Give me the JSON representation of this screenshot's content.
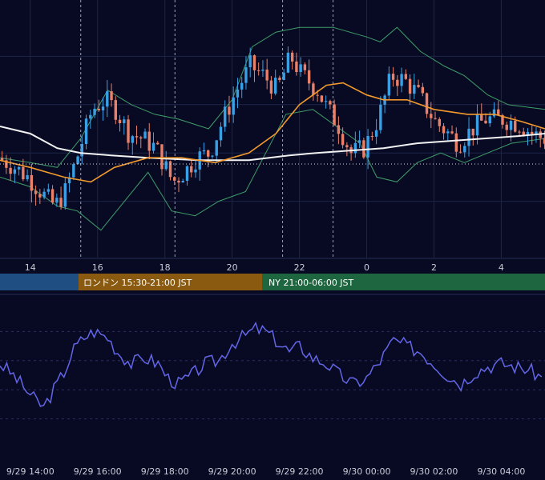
{
  "colors": {
    "background": "#070a22",
    "grid": "#1f2448",
    "bull": "#3aa0e6",
    "bear": "#e8806a",
    "bollinger": "#3f9e6a",
    "ma_short": "#f29a2e",
    "ma_long": "#f2f2f2",
    "rsi": "#6466e8",
    "session_tokyo": "#1f4e82",
    "session_london": "#8a5a10",
    "session_ny": "#1e6640"
  },
  "sessions": [
    {
      "label": "",
      "color": "#1f4e82"
    },
    {
      "label": "ロンドン 15:30-21:00 JST",
      "color": "#8a5a10"
    },
    {
      "label": "NY 21:00-06:00 JST",
      "color": "#1e6640"
    }
  ],
  "chart_data": [
    {
      "type": "candlestick",
      "title": "",
      "x_tick_labels": [
        "14",
        "16",
        "18",
        "20",
        "22",
        "0",
        "2",
        "4"
      ],
      "x_hours": [
        14,
        16,
        18,
        20,
        22,
        24,
        26,
        28
      ],
      "x_range": [
        13.1,
        29.3
      ],
      "y_range": [
        0,
        100
      ],
      "grid": true,
      "session_dividers_hours": [
        15.5,
        18.3,
        21.5,
        23.0
      ],
      "price_path": [
        [
          13.1,
          38
        ],
        [
          13.5,
          35
        ],
        [
          14.0,
          30
        ],
        [
          14.5,
          22
        ],
        [
          14.8,
          18
        ],
        [
          15.1,
          24
        ],
        [
          15.5,
          40
        ],
        [
          15.9,
          58
        ],
        [
          16.3,
          62
        ],
        [
          16.6,
          58
        ],
        [
          17.0,
          48
        ],
        [
          17.4,
          46
        ],
        [
          17.8,
          42
        ],
        [
          18.3,
          28
        ],
        [
          18.7,
          33
        ],
        [
          19.0,
          38
        ],
        [
          19.4,
          40
        ],
        [
          19.8,
          54
        ],
        [
          20.2,
          66
        ],
        [
          20.6,
          76
        ],
        [
          21.0,
          72
        ],
        [
          21.4,
          66
        ],
        [
          21.8,
          80
        ],
        [
          22.1,
          73
        ],
        [
          22.6,
          66
        ],
        [
          22.9,
          58
        ],
        [
          23.2,
          52
        ],
        [
          23.6,
          40
        ],
        [
          24.0,
          42
        ],
        [
          24.4,
          54
        ],
        [
          24.8,
          72
        ],
        [
          25.2,
          70
        ],
        [
          25.6,
          64
        ],
        [
          26.1,
          53
        ],
        [
          26.5,
          48
        ],
        [
          26.8,
          44
        ],
        [
          27.2,
          50
        ],
        [
          27.6,
          54
        ],
        [
          28.1,
          54
        ],
        [
          28.6,
          52
        ],
        [
          29.0,
          48
        ],
        [
          29.3,
          46
        ]
      ],
      "ma_short_path": [
        [
          13.1,
          37
        ],
        [
          14.0,
          34
        ],
        [
          15.0,
          30
        ],
        [
          15.8,
          28
        ],
        [
          16.5,
          34
        ],
        [
          17.5,
          38
        ],
        [
          18.5,
          38
        ],
        [
          19.5,
          36
        ],
        [
          20.5,
          40
        ],
        [
          21.3,
          48
        ],
        [
          22.0,
          60
        ],
        [
          22.8,
          68
        ],
        [
          23.3,
          69
        ],
        [
          24.0,
          64
        ],
        [
          24.5,
          62
        ],
        [
          25.2,
          62
        ],
        [
          26.0,
          58
        ],
        [
          27.0,
          56
        ],
        [
          27.8,
          56
        ],
        [
          28.6,
          53
        ],
        [
          29.3,
          50
        ]
      ],
      "ma_long_path": [
        [
          13.1,
          51
        ],
        [
          14.0,
          48
        ],
        [
          14.8,
          42
        ],
        [
          15.5,
          40
        ],
        [
          16.4,
          39
        ],
        [
          17.5,
          38
        ],
        [
          19.0,
          37
        ],
        [
          20.5,
          37
        ],
        [
          21.7,
          39
        ],
        [
          22.5,
          40
        ],
        [
          23.5,
          41
        ],
        [
          24.5,
          42
        ],
        [
          25.5,
          44
        ],
        [
          26.5,
          45
        ],
        [
          27.5,
          46
        ],
        [
          28.5,
          47
        ],
        [
          29.3,
          48
        ]
      ],
      "bollinger_upper_path": [
        [
          13.1,
          38
        ],
        [
          14.0,
          36
        ],
        [
          14.8,
          34
        ],
        [
          15.5,
          46
        ],
        [
          16.3,
          66
        ],
        [
          17.0,
          60
        ],
        [
          17.7,
          56
        ],
        [
          18.4,
          54
        ],
        [
          19.3,
          50
        ],
        [
          20.0,
          62
        ],
        [
          20.6,
          84
        ],
        [
          21.3,
          90
        ],
        [
          22.0,
          92
        ],
        [
          23.0,
          92
        ],
        [
          23.5,
          90
        ],
        [
          24.0,
          88
        ],
        [
          24.4,
          86
        ],
        [
          24.9,
          92
        ],
        [
          25.6,
          82
        ],
        [
          26.3,
          76
        ],
        [
          26.9,
          72
        ],
        [
          27.6,
          64
        ],
        [
          28.2,
          60
        ],
        [
          29.3,
          58
        ]
      ],
      "bollinger_lower_path": [
        [
          13.1,
          30
        ],
        [
          14.0,
          26
        ],
        [
          14.8,
          18
        ],
        [
          15.4,
          16
        ],
        [
          16.1,
          8
        ],
        [
          16.8,
          20
        ],
        [
          17.5,
          32
        ],
        [
          18.2,
          16
        ],
        [
          18.9,
          14
        ],
        [
          19.6,
          20
        ],
        [
          20.4,
          24
        ],
        [
          21.0,
          40
        ],
        [
          21.6,
          56
        ],
        [
          22.4,
          58
        ],
        [
          23.2,
          50
        ],
        [
          23.8,
          44
        ],
        [
          24.3,
          30
        ],
        [
          24.9,
          28
        ],
        [
          25.5,
          36
        ],
        [
          26.2,
          40
        ],
        [
          26.9,
          36
        ],
        [
          27.6,
          40
        ],
        [
          28.3,
          44
        ],
        [
          29.3,
          46
        ]
      ]
    },
    {
      "type": "line",
      "title": "",
      "series": [
        {
          "values": [
            [
              13.1,
              58
            ],
            [
              13.5,
              50
            ],
            [
              13.8,
              42
            ],
            [
              14.1,
              34
            ],
            [
              14.4,
              28
            ],
            [
              14.7,
              40
            ],
            [
              15.0,
              52
            ],
            [
              15.3,
              68
            ],
            [
              15.6,
              76
            ],
            [
              15.9,
              80
            ],
            [
              16.3,
              76
            ],
            [
              16.6,
              66
            ],
            [
              17.0,
              58
            ],
            [
              17.4,
              62
            ],
            [
              17.8,
              58
            ],
            [
              18.1,
              48
            ],
            [
              18.4,
              44
            ],
            [
              18.8,
              50
            ],
            [
              19.2,
              58
            ],
            [
              19.6,
              60
            ],
            [
              20.0,
              72
            ],
            [
              20.3,
              76
            ],
            [
              20.7,
              82
            ],
            [
              21.0,
              80
            ],
            [
              21.3,
              74
            ],
            [
              21.7,
              66
            ],
            [
              22.0,
              70
            ],
            [
              22.4,
              62
            ],
            [
              22.8,
              58
            ],
            [
              23.2,
              50
            ],
            [
              23.6,
              44
            ],
            [
              24.0,
              48
            ],
            [
              24.4,
              60
            ],
            [
              24.8,
              74
            ],
            [
              25.2,
              70
            ],
            [
              25.6,
              66
            ],
            [
              26.0,
              58
            ],
            [
              26.4,
              50
            ],
            [
              26.8,
              44
            ],
            [
              27.2,
              52
            ],
            [
              27.6,
              56
            ],
            [
              28.0,
              58
            ],
            [
              28.4,
              56
            ],
            [
              28.8,
              54
            ],
            [
              29.1,
              50
            ],
            [
              29.3,
              46
            ]
          ]
        }
      ],
      "x_tick_labels": [
        "9/29 14:00",
        "9/29 16:00",
        "9/29 18:00",
        "9/29 20:00",
        "9/29 22:00",
        "9/30 00:00",
        "9/30 02:00",
        "9/30 04:00"
      ],
      "x_hours": [
        14,
        16,
        18,
        20,
        22,
        24,
        26,
        28
      ],
      "x_range": [
        13.1,
        29.3
      ],
      "y_range": [
        0,
        100
      ],
      "grid": true
    }
  ]
}
